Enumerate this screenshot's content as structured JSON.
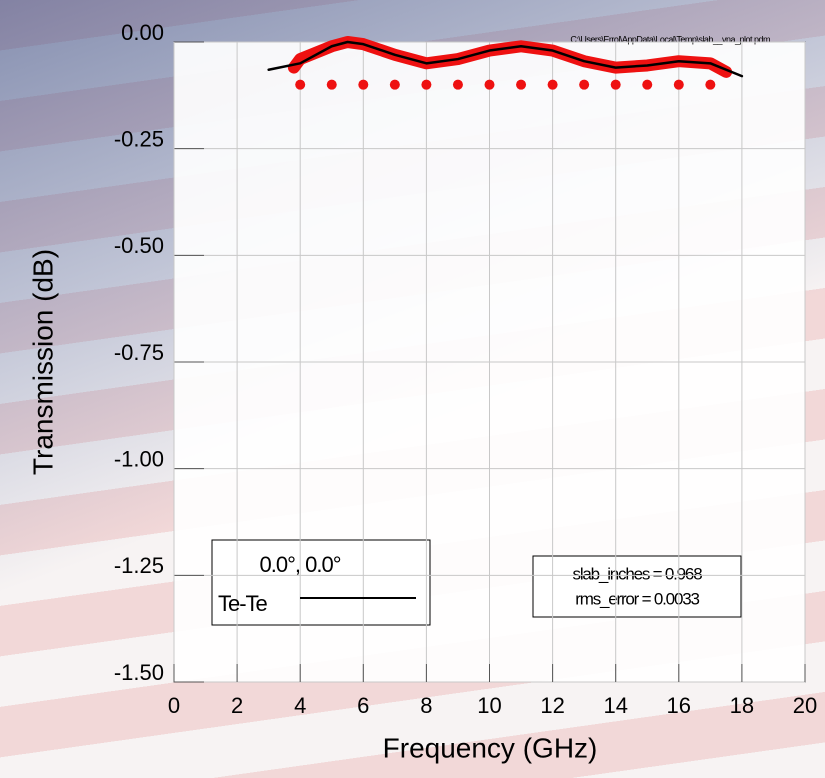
{
  "chart_data": {
    "type": "line",
    "file_path": "C:\\Users\\Errol\\AppData\\Local\\Temp\\slab__vna_plot.pdm",
    "x_label": "Frequency (GHz)",
    "y_label": "Transmission (dB)",
    "legend_title": "0.0°, 0.0°",
    "annotations": [
      "slab_inches = 0.968",
      "rms_error = 0.0033"
    ],
    "xlim": [
      0,
      20
    ],
    "xticks": [
      0,
      2,
      4,
      6,
      8,
      10,
      12,
      14,
      16,
      18,
      20
    ],
    "ylim": [
      -1.5,
      0
    ],
    "yticks": [
      {
        "value": 0,
        "label": "0.00"
      },
      -0.25,
      {
        "value": -0.5,
        "label": "-0.50"
      },
      -0.75,
      {
        "value": -1,
        "label": "-1.00"
      },
      -1.25,
      {
        "value": -1.5,
        "label": "-1.50"
      }
    ],
    "grid": true,
    "series": [
      {
        "style": "thick",
        "color": "#ee1111",
        "x": [
          3.8,
          4,
          5,
          5.5,
          6,
          7,
          8,
          9,
          10,
          11,
          12,
          13,
          14,
          15,
          16,
          17,
          17.5
        ],
        "values": [
          -0.06,
          -0.04,
          -0.01,
          0,
          -0.005,
          -0.03,
          -0.05,
          -0.04,
          -0.02,
          -0.01,
          -0.02,
          -0.045,
          -0.06,
          -0.055,
          -0.045,
          -0.05,
          -0.07
        ]
      },
      {
        "name": "Te-Te",
        "style": "line",
        "color": "#000000",
        "x": [
          3,
          4,
          5,
          5.5,
          6,
          7,
          8,
          9,
          10,
          11,
          12,
          13,
          14,
          15,
          16,
          17,
          18
        ],
        "values": [
          -0.065,
          -0.05,
          -0.01,
          0,
          -0.005,
          -0.03,
          -0.05,
          -0.04,
          -0.02,
          -0.01,
          -0.02,
          -0.045,
          -0.06,
          -0.055,
          -0.045,
          -0.05,
          -0.08
        ]
      },
      {
        "style": "dots",
        "color": "#ee1111",
        "x": [
          4,
          5,
          6,
          7,
          8,
          9,
          10,
          11,
          12,
          13,
          14,
          15,
          16,
          17
        ],
        "values": [
          -0.1,
          -0.1,
          -0.1,
          -0.1,
          -0.1,
          -0.1,
          -0.1,
          -0.1,
          -0.1,
          -0.1,
          -0.1,
          -0.1,
          -0.1,
          -0.1
        ]
      }
    ]
  }
}
